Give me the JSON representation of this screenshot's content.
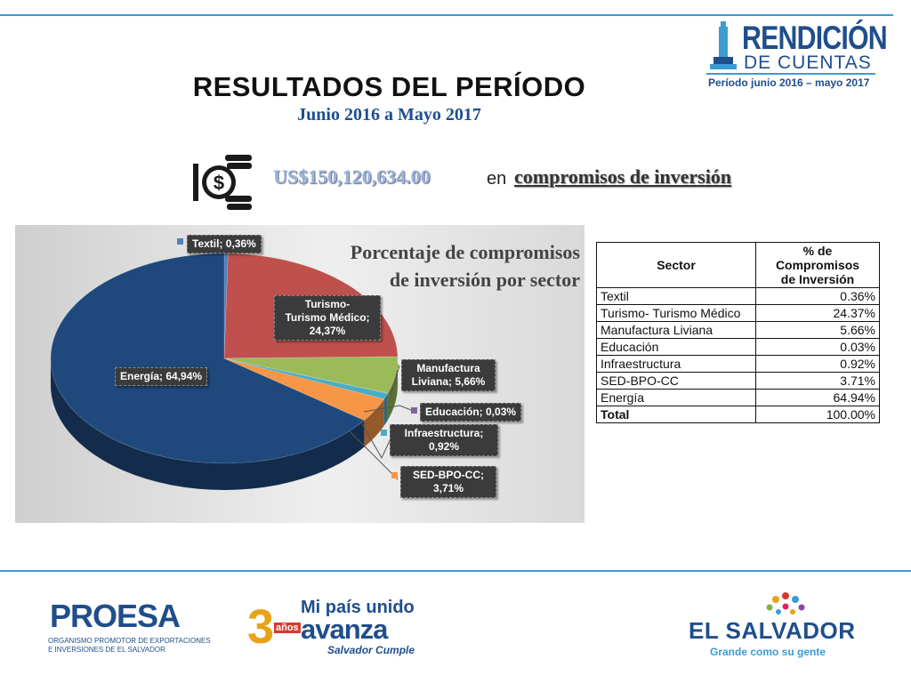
{
  "header": {
    "title": "RESULTADOS DEL PERÍODO",
    "subtitle": "Junio 2016 a Mayo 2017",
    "logo_line1": "RENDICIÓN",
    "logo_line2": "DE CUENTAS",
    "logo_period": "Período junio 2016 – mayo 2017"
  },
  "headline": {
    "amount": "US$150,120,634.00",
    "connector": "en",
    "label": "compromisos de inversión",
    "icon": "money-coins-icon"
  },
  "chart_data": {
    "type": "pie",
    "title": "Porcentaje de compromisos de inversión por sector",
    "title_line1": "Porcentaje de compromisos",
    "title_line2": "de inversión por sector",
    "categories": [
      "Textil",
      "Turismo- Turismo Médico",
      "Manufactura Liviana",
      "Educación",
      "Infraestructura",
      "SED-BPO-CC",
      "Energía"
    ],
    "values": [
      0.36,
      24.37,
      5.66,
      0.03,
      0.92,
      3.71,
      64.94
    ],
    "data_labels": [
      [
        "Textil; 0,36%"
      ],
      [
        "Turismo-",
        "Turismo Médico;",
        "24,37%"
      ],
      [
        "Manufactura",
        "Liviana; 5,66%"
      ],
      [
        "Educación; 0,03%"
      ],
      [
        "Infraestructura;",
        "0,92%"
      ],
      [
        "SED-BPO-CC;",
        "3,71%"
      ],
      [
        "Energía; 64,94%"
      ]
    ],
    "colors": [
      "#4f81bd",
      "#c0504d",
      "#9bbb59",
      "#8064a2",
      "#4bacc6",
      "#f79646",
      "#1f497d"
    ],
    "legend": "none"
  },
  "table": {
    "headers": [
      "Sector",
      "% de Compromisos de Inversión"
    ],
    "header_line1": "% de",
    "header_line2": "Compromisos",
    "header_line3": "de Inversión",
    "rows": [
      {
        "sector": "Textil",
        "pct": "0.36%"
      },
      {
        "sector": "Turismo- Turismo Médico",
        "pct": "24.37%"
      },
      {
        "sector": "Manufactura Liviana",
        "pct": "5.66%"
      },
      {
        "sector": "Educación",
        "pct": "0.03%"
      },
      {
        "sector": "Infraestructura",
        "pct": "0.92%"
      },
      {
        "sector": "SED-BPO-CC",
        "pct": "3.71%"
      },
      {
        "sector": "Energía",
        "pct": "64.94%"
      }
    ],
    "total_label": "Total",
    "total_value": "100.00%"
  },
  "footer": {
    "proesa_name": "PROESA",
    "proesa_sub1": "ORGANISMO PROMOTOR DE EXPORTACIONES",
    "proesa_sub2": "E INVERSIONES DE EL SALVADOR",
    "campaign_num": "3",
    "campaign_anos": "años",
    "campaign_line1": "Mi país unido",
    "campaign_line2": "avanza",
    "campaign_line3": "Salvador Cumple",
    "country_name": "EL SALVADOR",
    "country_slogan": "Grande como su gente"
  }
}
